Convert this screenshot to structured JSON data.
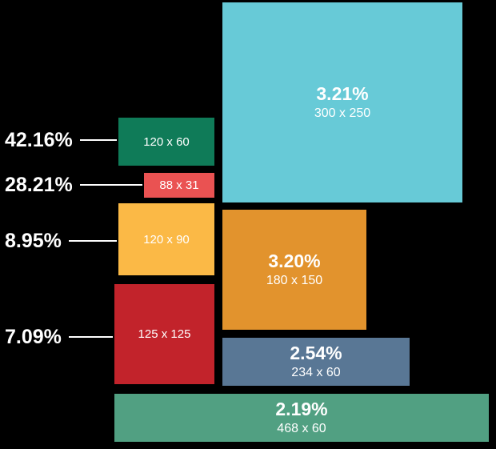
{
  "background_color": "#000000",
  "text_color": "#ffffff",
  "chart_data": {
    "type": "bar",
    "subtype": "ad-size-area-comparison",
    "title": "",
    "categories": [
      "120 x 60",
      "88 x 31",
      "120 x 90",
      "125 x 125",
      "300 x 250",
      "180 x 150",
      "234 x 60",
      "468 x 60"
    ],
    "values": [
      42.16,
      28.21,
      8.95,
      7.09,
      3.21,
      3.2,
      2.54,
      2.19
    ],
    "value_unit": "%",
    "legend": "none",
    "layout_hint": "each rectangle rendered at its literal pixel dimensions; small rectangles get outside callout labels, large ones show percentage inside"
  },
  "rects": [
    {
      "size": "120 x 60",
      "pct": "42.16%",
      "pct_inside": false,
      "color": "#0f7b58"
    },
    {
      "size": "88 x 31",
      "pct": "28.21%",
      "pct_inside": false,
      "color": "#ea5252"
    },
    {
      "size": "120 x 90",
      "pct": "8.95%",
      "pct_inside": false,
      "color": "#fbb946"
    },
    {
      "size": "125 x 125",
      "pct": "7.09%",
      "pct_inside": false,
      "color": "#c2232b"
    },
    {
      "size": "300 x 250",
      "pct": "3.21%",
      "pct_inside": true,
      "color": "#67cad7"
    },
    {
      "size": "180 x 150",
      "pct": "3.20%",
      "pct_inside": true,
      "color": "#e2932d"
    },
    {
      "size": "234 x 60",
      "pct": "2.54%",
      "pct_inside": true,
      "color": "#597795"
    },
    {
      "size": "468 x 60",
      "pct": "2.19%",
      "pct_inside": true,
      "color": "#51a082"
    }
  ],
  "callouts": [
    {
      "label": "42.16%",
      "target": "120 x 60"
    },
    {
      "label": "28.21%",
      "target": "88 x 31"
    },
    {
      "label": "8.95%",
      "target": "120 x 90"
    },
    {
      "label": "7.09%",
      "target": "125 x 125"
    }
  ]
}
